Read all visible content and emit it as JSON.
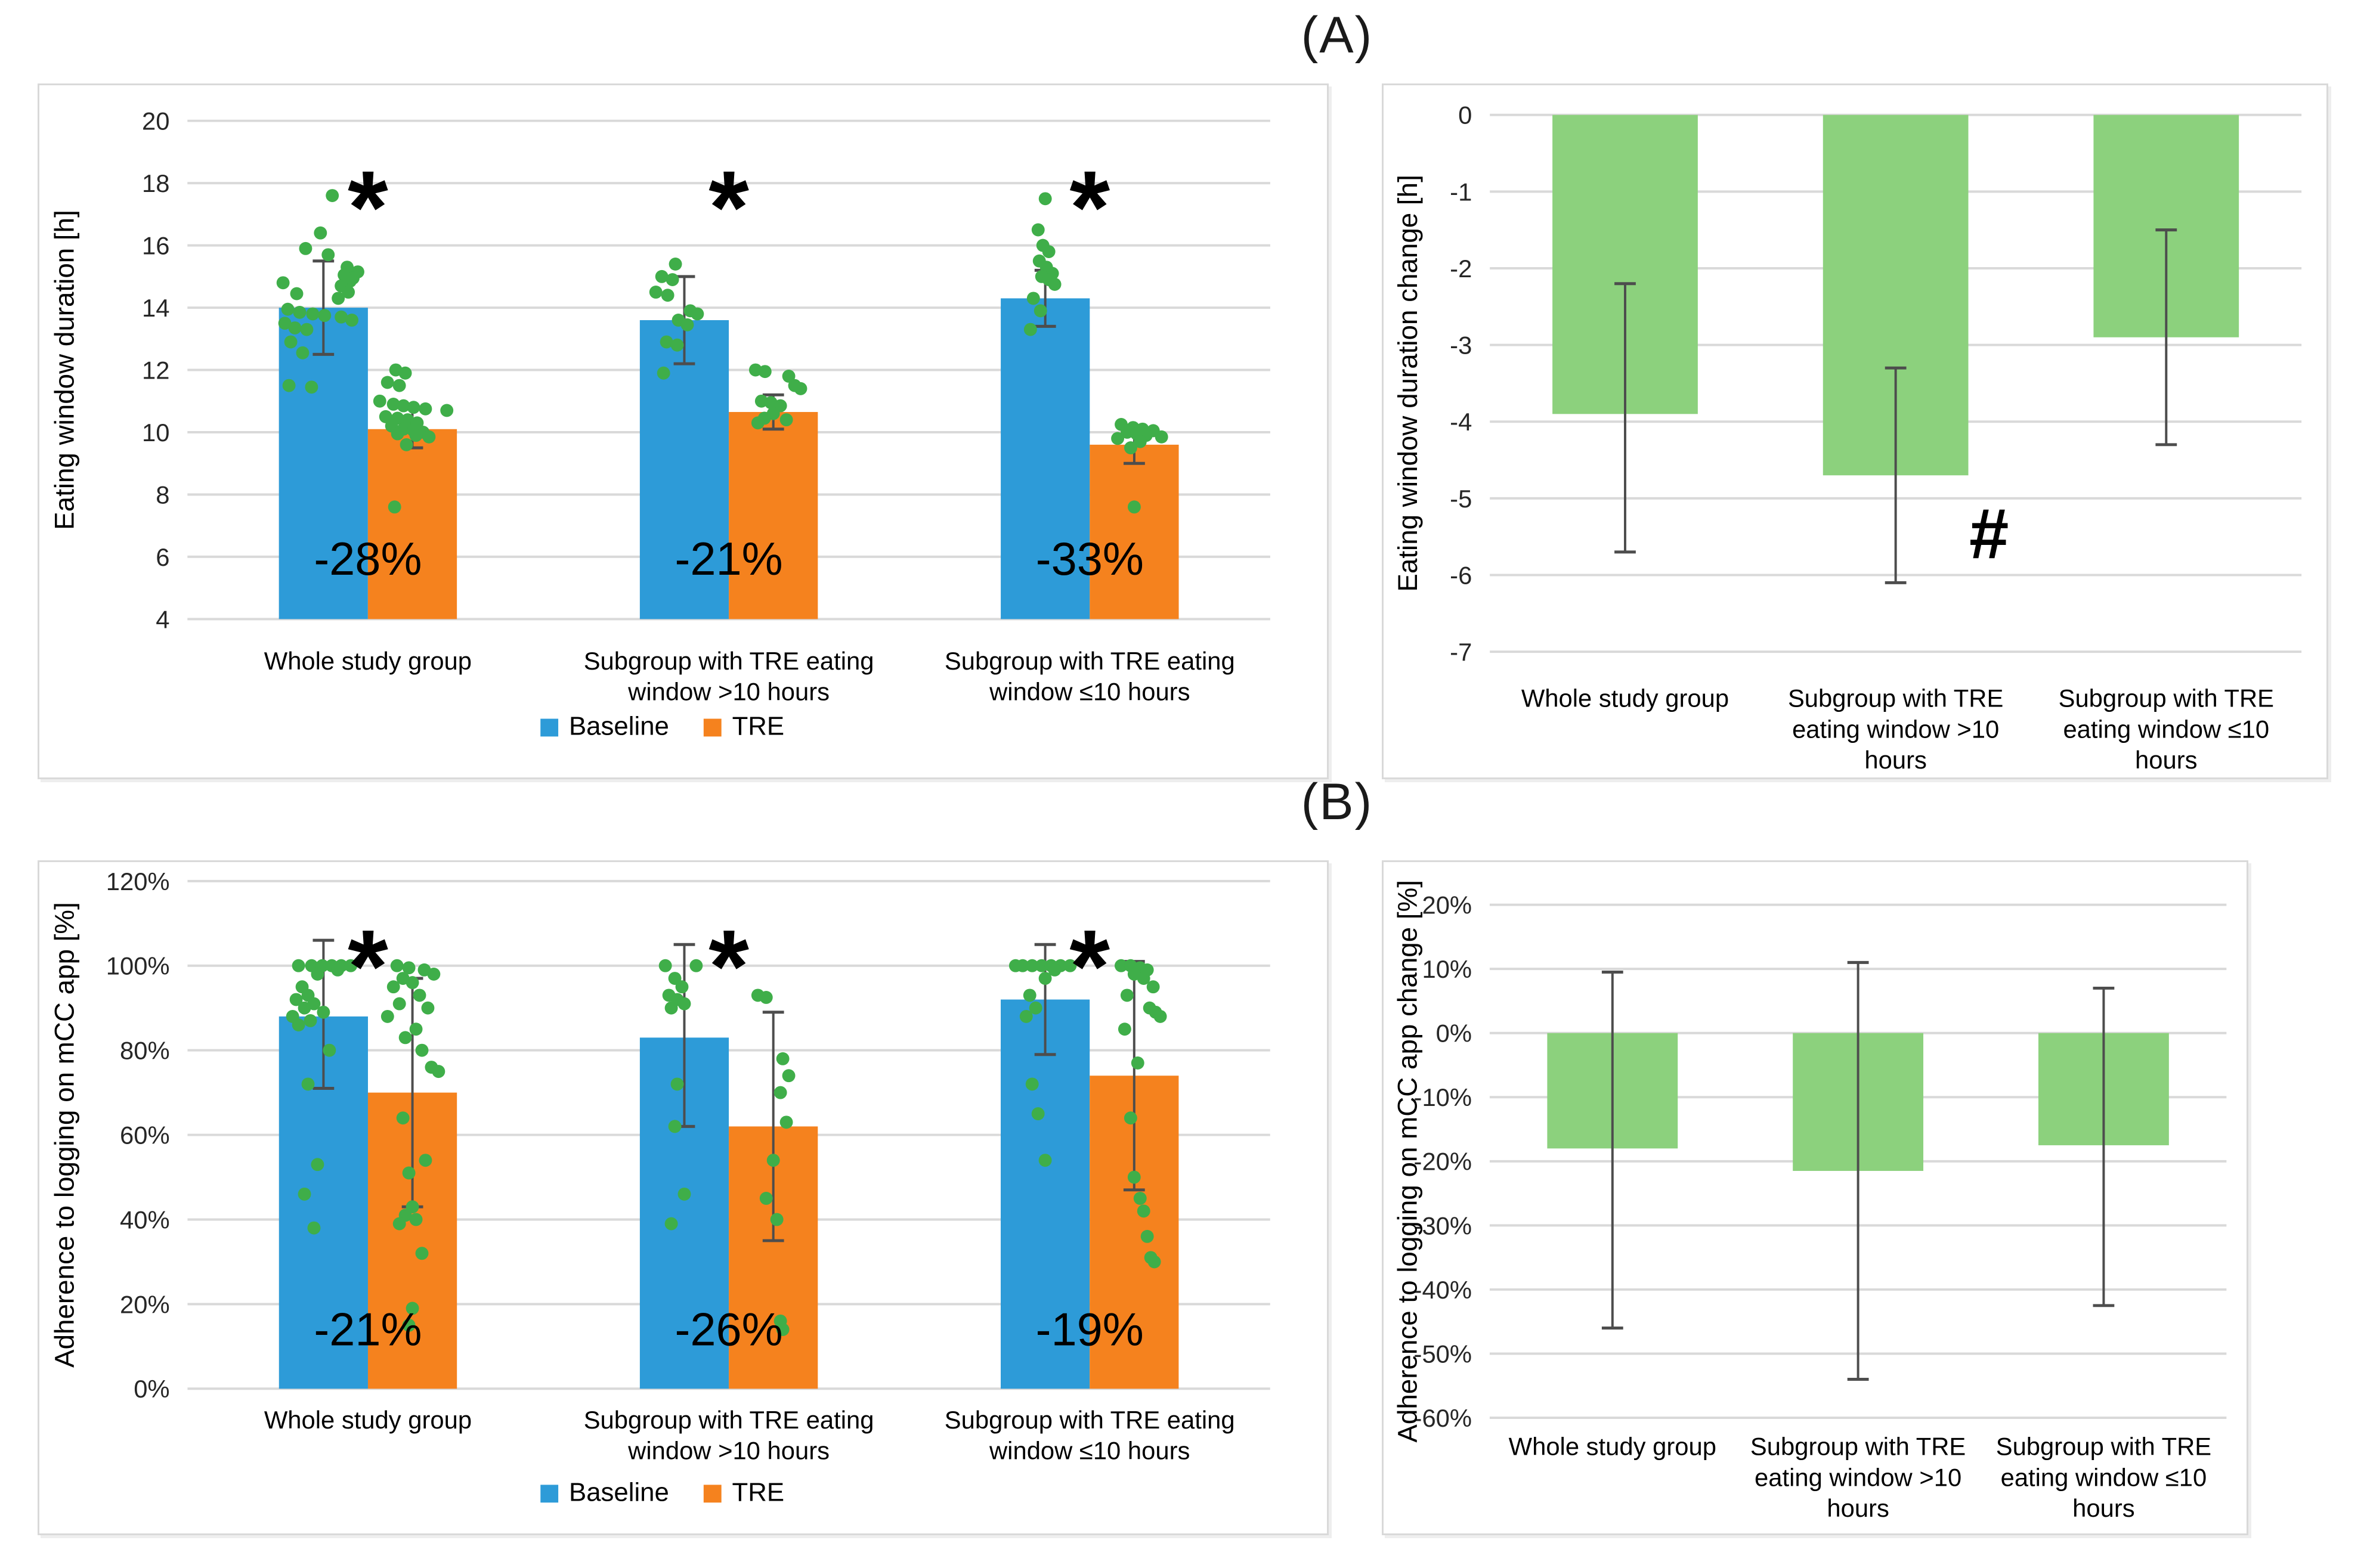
{
  "figure": {
    "panel_a_label": "(A)",
    "panel_b_label": "(B)"
  },
  "colors": {
    "baseline_bar": "#2D9BD8",
    "tre_bar": "#F5821E",
    "change_bar": "#8CD17D",
    "scatter_dot": "#3FAE49",
    "error_bar": "#4D4D4D",
    "gridline": "#D9D9D9",
    "tick_text": "#262626",
    "label_text": "#000000"
  },
  "legend": {
    "items": [
      {
        "label": "Baseline",
        "color": "baseline_bar"
      },
      {
        "label": "TRE",
        "color": "tre_bar"
      }
    ]
  },
  "chart_data": [
    {
      "id": "eating_window_duration",
      "type": "bar",
      "title": "",
      "xlabel": "",
      "ylabel": "Eating window duration [h]",
      "ylim": [
        4,
        20
      ],
      "ystep": 2,
      "tick_suffix": "",
      "grid": true,
      "categories": [
        "Whole study group",
        "Subgroup with TRE eating window >10 hours",
        "Subgroup with TRE eating window ≤10 hours"
      ],
      "category_lines": [
        [
          "Whole study group"
        ],
        [
          "Subgroup with TRE eating",
          "window >10 hours"
        ],
        [
          "Subgroup with  TRE eating",
          "window ≤10 hours"
        ]
      ],
      "series": [
        {
          "name": "Baseline",
          "color": "baseline_bar",
          "values": [
            14.0,
            13.6,
            14.3
          ],
          "err_low": [
            12.5,
            12.2,
            13.4
          ],
          "err_high": [
            15.5,
            15.0,
            15.2
          ]
        },
        {
          "name": "TRE",
          "color": "tre_bar",
          "values": [
            10.1,
            10.65,
            9.6
          ],
          "err_low": [
            9.5,
            10.1,
            9.0
          ],
          "err_high": [
            10.75,
            11.2,
            10.2
          ]
        }
      ],
      "change_labels": [
        "-28%",
        "-21%",
        "-33%"
      ],
      "sig_markers": [
        "*",
        "*",
        "*"
      ],
      "show_legend": true,
      "scatter": [
        [
          [
            [
              15,
              17.6
            ],
            [
              -5,
              16.4
            ],
            [
              -30,
              15.9
            ],
            [
              8,
              15.7
            ],
            [
              40,
              15.3
            ],
            [
              58,
              15.15
            ],
            [
              35,
              15.05
            ],
            [
              50,
              14.95
            ],
            [
              45,
              14.85
            ],
            [
              -68,
              14.8
            ],
            [
              30,
              14.7
            ],
            [
              42,
              14.5
            ],
            [
              -45,
              14.45
            ],
            [
              25,
              14.3
            ],
            [
              -60,
              13.95
            ],
            [
              -40,
              13.85
            ],
            [
              -18,
              13.8
            ],
            [
              2,
              13.75
            ],
            [
              30,
              13.7
            ],
            [
              48,
              13.6
            ],
            [
              -65,
              13.5
            ],
            [
              -48,
              13.35
            ],
            [
              -28,
              13.3
            ],
            [
              -55,
              12.9
            ],
            [
              -35,
              12.55
            ],
            [
              -58,
              11.5
            ],
            [
              -20,
              11.45
            ]
          ],
          [
            [
              -15,
              15.4
            ],
            [
              -38,
              15.0
            ],
            [
              -20,
              14.9
            ],
            [
              -48,
              14.5
            ],
            [
              -28,
              14.4
            ],
            [
              10,
              13.9
            ],
            [
              22,
              13.8
            ],
            [
              -10,
              13.6
            ],
            [
              5,
              13.45
            ],
            [
              -30,
              12.9
            ],
            [
              -12,
              12.8
            ],
            [
              -35,
              11.9
            ]
          ],
          [
            [
              0,
              17.5
            ],
            [
              -12,
              16.5
            ],
            [
              -4,
              16.0
            ],
            [
              6,
              15.8
            ],
            [
              -10,
              15.5
            ],
            [
              2,
              15.3
            ],
            [
              12,
              15.1
            ],
            [
              -6,
              15.0
            ],
            [
              6,
              14.9
            ],
            [
              16,
              14.75
            ],
            [
              -20,
              14.3
            ],
            [
              -8,
              13.9
            ],
            [
              -25,
              13.3
            ]
          ]
        ],
        [
          [
            [
              -28,
              12.0
            ],
            [
              -12,
              11.9
            ],
            [
              -42,
              11.6
            ],
            [
              -22,
              11.5
            ],
            [
              -55,
              11.0
            ],
            [
              -32,
              10.9
            ],
            [
              -15,
              10.85
            ],
            [
              2,
              10.8
            ],
            [
              22,
              10.75
            ],
            [
              58,
              10.7
            ],
            [
              -45,
              10.5
            ],
            [
              -25,
              10.45
            ],
            [
              -8,
              10.4
            ],
            [
              8,
              10.3
            ],
            [
              -35,
              10.2
            ],
            [
              -15,
              10.1
            ],
            [
              2,
              10.05
            ],
            [
              18,
              10.0
            ],
            [
              -25,
              9.95
            ],
            [
              6,
              9.9
            ],
            [
              28,
              9.85
            ],
            [
              -10,
              9.6
            ],
            [
              -30,
              7.6
            ]
          ],
          [
            [
              -30,
              12.0
            ],
            [
              -14,
              11.95
            ],
            [
              26,
              11.8
            ],
            [
              36,
              11.5
            ],
            [
              46,
              11.4
            ],
            [
              -20,
              11.0
            ],
            [
              -4,
              10.95
            ],
            [
              12,
              10.85
            ],
            [
              0,
              10.6
            ],
            [
              -15,
              10.45
            ],
            [
              22,
              10.4
            ],
            [
              -26,
              10.3
            ]
          ],
          [
            [
              -22,
              10.25
            ],
            [
              -2,
              10.15
            ],
            [
              14,
              10.1
            ],
            [
              32,
              10.05
            ],
            [
              -12,
              10.0
            ],
            [
              4,
              9.95
            ],
            [
              20,
              9.9
            ],
            [
              46,
              9.85
            ],
            [
              -28,
              9.8
            ],
            [
              10,
              9.7
            ],
            [
              -6,
              9.5
            ],
            [
              0,
              7.6
            ]
          ]
        ]
      ]
    },
    {
      "id": "eating_window_duration_change",
      "type": "bar",
      "title": "",
      "xlabel": "",
      "ylabel": "Eating window duration change [h]",
      "ylim": [
        -7,
        0
      ],
      "ystep": 1,
      "tick_suffix": "",
      "grid": true,
      "categories": [
        "Whole study group",
        "Subgroup with TRE eating window >10 hours",
        "Subgroup with TRE eating window ≤10 hours"
      ],
      "category_lines": [
        [
          "Whole study group"
        ],
        [
          "Subgroup with TRE",
          "eating window >10",
          "hours"
        ],
        [
          "Subgroup with  TRE",
          "eating window ≤10",
          "hours"
        ]
      ],
      "series": [
        {
          "name": "Change",
          "color": "change_bar",
          "values": [
            -3.9,
            -4.7,
            -2.9
          ],
          "err_low": [
            -5.7,
            -6.1,
            -4.3
          ],
          "err_high": [
            -2.2,
            -3.3,
            -1.5
          ]
        }
      ],
      "annotation": {
        "text": "#",
        "x_frac": 0.615,
        "y_value": -5.45
      },
      "show_legend": false
    },
    {
      "id": "adherence_logging",
      "type": "bar",
      "title": "",
      "xlabel": "",
      "ylabel": "Adherence to logging on mCC app [%]",
      "ylim": [
        0,
        120
      ],
      "ystep": 20,
      "tick_suffix": "%",
      "grid": true,
      "categories": [
        "Whole study group",
        "Subgroup with TRE eating window >10 hours",
        "Subgroup with TRE eating window ≤10 hours"
      ],
      "category_lines": [
        [
          "Whole study group"
        ],
        [
          "Subgroup with TRE eating",
          "window >10 hours"
        ],
        [
          "Subgroup with  TRE eating",
          "window ≤10 hours"
        ]
      ],
      "series": [
        {
          "name": "Baseline",
          "color": "baseline_bar",
          "values": [
            88,
            83,
            92
          ],
          "err_low": [
            71,
            62,
            79
          ],
          "err_high": [
            106,
            105,
            105
          ]
        },
        {
          "name": "TRE",
          "color": "tre_bar",
          "values": [
            70,
            62,
            74
          ],
          "err_low": [
            43,
            35,
            47
          ],
          "err_high": [
            97,
            89,
            101
          ]
        }
      ],
      "change_labels": [
        "-21%",
        "-26%",
        "-19%"
      ],
      "sig_markers": [
        "*",
        "*",
        "*"
      ],
      "show_legend": true,
      "scatter": [
        [
          [
            [
              -20,
              100
            ],
            [
              -2,
              100
            ],
            [
              14,
              100
            ],
            [
              30,
              100
            ],
            [
              46,
              100
            ],
            [
              -42,
              100
            ],
            [
              24,
              99
            ],
            [
              -10,
              98
            ],
            [
              -36,
              95
            ],
            [
              -26,
              93
            ],
            [
              -46,
              92
            ],
            [
              -16,
              91
            ],
            [
              -32,
              90
            ],
            [
              0,
              89
            ],
            [
              -52,
              88
            ],
            [
              -22,
              87
            ],
            [
              -42,
              86
            ],
            [
              10,
              80
            ],
            [
              -26,
              72
            ],
            [
              -10,
              53
            ],
            [
              -32,
              46
            ],
            [
              -16,
              38
            ]
          ],
          [
            [
              -32,
              100
            ],
            [
              20,
              100
            ],
            [
              -16,
              97
            ],
            [
              -4,
              95
            ],
            [
              -26,
              93
            ],
            [
              -12,
              92
            ],
            [
              0,
              91
            ],
            [
              -22,
              90
            ],
            [
              -12,
              72
            ],
            [
              -16,
              62
            ],
            [
              0,
              46
            ],
            [
              -22,
              39
            ]
          ],
          [
            [
              -38,
              100
            ],
            [
              -22,
              100
            ],
            [
              -6,
              100
            ],
            [
              10,
              100
            ],
            [
              26,
              100
            ],
            [
              42,
              100
            ],
            [
              -50,
              100
            ],
            [
              16,
              99
            ],
            [
              0,
              97
            ],
            [
              -26,
              93
            ],
            [
              -16,
              90
            ],
            [
              -32,
              88
            ],
            [
              -22,
              72
            ],
            [
              -12,
              65
            ],
            [
              0,
              54
            ]
          ]
        ],
        [
          [
            [
              -26,
              100
            ],
            [
              -6,
              99.5
            ],
            [
              20,
              99
            ],
            [
              36,
              98
            ],
            [
              -16,
              97
            ],
            [
              0,
              96
            ],
            [
              -32,
              95
            ],
            [
              12,
              93
            ],
            [
              -22,
              91
            ],
            [
              26,
              90
            ],
            [
              -42,
              88
            ],
            [
              6,
              85
            ],
            [
              -12,
              83
            ],
            [
              16,
              80
            ],
            [
              32,
              76
            ],
            [
              44,
              75
            ],
            [
              -16,
              64
            ],
            [
              22,
              54
            ],
            [
              -6,
              51
            ],
            [
              0,
              43
            ],
            [
              -12,
              41
            ],
            [
              6,
              40
            ],
            [
              -22,
              39
            ],
            [
              16,
              32
            ],
            [
              0,
              19
            ],
            [
              -6,
              15
            ]
          ],
          [
            [
              -26,
              93
            ],
            [
              -12,
              92.5
            ],
            [
              16,
              78
            ],
            [
              26,
              74
            ],
            [
              12,
              70
            ],
            [
              22,
              63
            ],
            [
              0,
              54
            ],
            [
              -12,
              45
            ],
            [
              6,
              40
            ],
            [
              12,
              16
            ],
            [
              16,
              14
            ]
          ],
          [
            [
              -22,
              100
            ],
            [
              -6,
              100
            ],
            [
              10,
              99.5
            ],
            [
              22,
              99
            ],
            [
              0,
              98
            ],
            [
              16,
              97
            ],
            [
              32,
              95
            ],
            [
              -12,
              93
            ],
            [
              26,
              90
            ],
            [
              36,
              89
            ],
            [
              44,
              88
            ],
            [
              -16,
              85
            ],
            [
              6,
              77
            ],
            [
              -6,
              64
            ],
            [
              0,
              50
            ],
            [
              10,
              45
            ],
            [
              16,
              42
            ],
            [
              22,
              36
            ],
            [
              28,
              31
            ],
            [
              34,
              30
            ]
          ]
        ]
      ]
    },
    {
      "id": "adherence_logging_change",
      "type": "bar",
      "title": "",
      "xlabel": "",
      "ylabel": "Adherence to logging on mCC app change [%]",
      "ylim": [
        -60,
        20
      ],
      "ystep": 10,
      "tick_suffix": "%",
      "grid": true,
      "categories": [
        "Whole study group",
        "Subgroup with TRE eating window >10 hours",
        "Subgroup with TRE eating window ≤10 hours"
      ],
      "category_lines": [
        [
          "Whole study group"
        ],
        [
          "Subgroup with TRE",
          "eating window >10",
          "hours"
        ],
        [
          "Subgroup with  TRE",
          "eating window ≤10",
          "hours"
        ]
      ],
      "series": [
        {
          "name": "Change",
          "color": "change_bar",
          "values": [
            -18,
            -21.5,
            -17.5
          ],
          "err_low": [
            -46,
            -54,
            -42.5
          ],
          "err_high": [
            9.5,
            11,
            7
          ]
        }
      ],
      "show_legend": false
    }
  ]
}
